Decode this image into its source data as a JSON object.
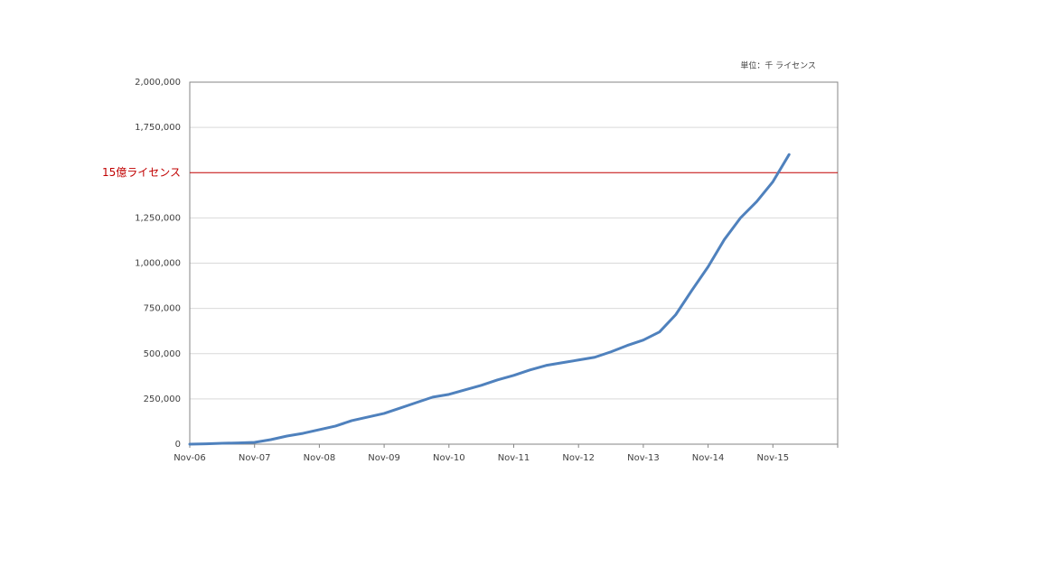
{
  "chart_data": {
    "type": "line",
    "unit_note": "単位：千 ライセンス",
    "categories": [
      "Nov-06",
      null,
      null,
      null,
      "Nov-07",
      null,
      null,
      null,
      "Nov-08",
      null,
      null,
      null,
      "Nov-09",
      null,
      null,
      null,
      "Nov-10",
      null,
      null,
      null,
      "Nov-11",
      null,
      null,
      null,
      "Nov-12",
      null,
      null,
      null,
      "Nov-13",
      null,
      null,
      null,
      "Nov-14",
      null,
      null,
      null,
      "Nov-15",
      null,
      null,
      null,
      null
    ],
    "values": [
      0,
      2000,
      5000,
      7000,
      10000,
      25000,
      45000,
      60000,
      80000,
      100000,
      130000,
      150000,
      170000,
      200000,
      230000,
      260000,
      275000,
      300000,
      325000,
      355000,
      380000,
      410000,
      435000,
      450000,
      465000,
      480000,
      510000,
      545000,
      575000,
      620000,
      715000,
      850000,
      980000,
      1130000,
      1250000,
      1340000,
      1450000,
      1600000,
      null,
      null,
      null
    ],
    "color": "#4f81bd",
    "ylim": [
      0,
      2000000
    ],
    "yticks": [
      0,
      {
        "value": 250000,
        "label": "250,000"
      },
      {
        "value": 500000,
        "label": "500,000"
      },
      {
        "value": 750000,
        "label": "750,000"
      },
      {
        "value": 1000000,
        "label": "1,000,000"
      },
      {
        "value": 1250000,
        "label": "1,250,000"
      },
      {
        "value": 1750000,
        "label": "1,750,000"
      },
      {
        "value": 2000000,
        "label": "2,000,000"
      }
    ],
    "grid": true,
    "reference_line": {
      "value": 1500000,
      "label": "15億ライセンス",
      "color": "#c00000"
    }
  }
}
